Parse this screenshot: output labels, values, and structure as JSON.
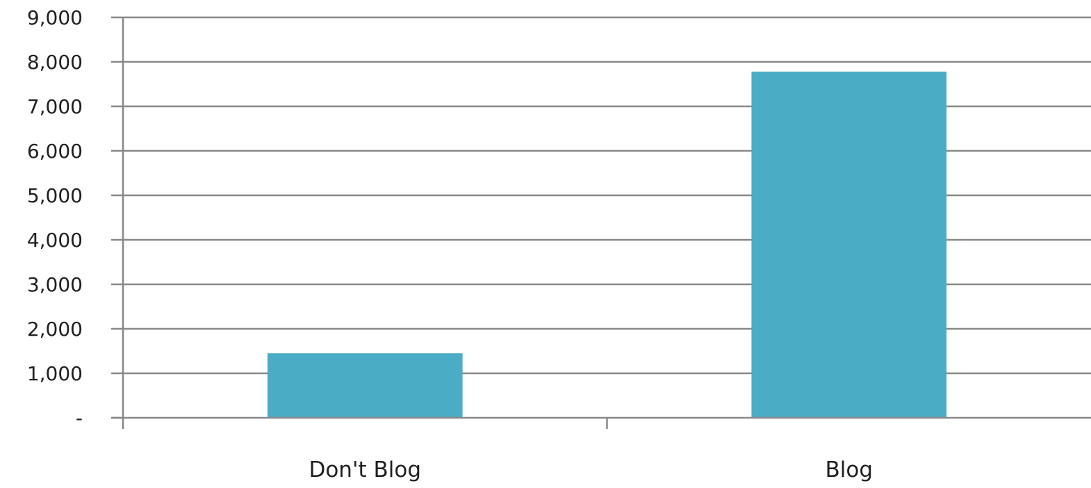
{
  "chart_data": {
    "type": "bar",
    "categories": [
      "Don't Blog",
      "Blog"
    ],
    "series": [
      {
        "values": [
          1450,
          7780
        ]
      }
    ],
    "ylim": [
      0,
      9000
    ],
    "y_ticks": [
      0,
      1000,
      2000,
      3000,
      4000,
      5000,
      6000,
      7000,
      8000,
      9000
    ],
    "y_tick_labels": [
      "-",
      "1,000",
      "2,000",
      "3,000",
      "4,000",
      "5,000",
      "6,000",
      "7,000",
      "8,000",
      "9,000"
    ],
    "grid": true,
    "legend": "none",
    "bar_color": "#4BACC6",
    "grid_color": "#888888"
  }
}
